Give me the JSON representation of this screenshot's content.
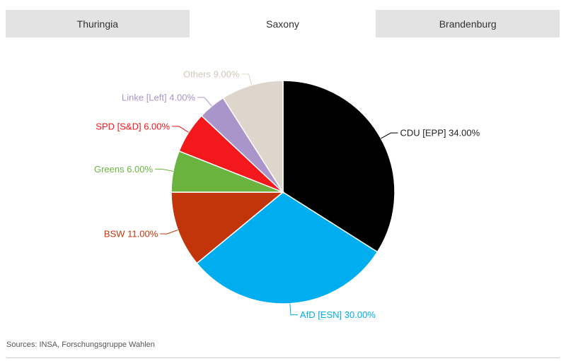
{
  "tabs": [
    {
      "label": "Thuringia",
      "active": false
    },
    {
      "label": "Saxony",
      "active": true
    },
    {
      "label": "Brandenburg",
      "active": false
    }
  ],
  "chart_data": {
    "type": "pie",
    "slices": [
      {
        "name": "CDU [EPP]",
        "value": 34.0,
        "label": "CDU [EPP] 34.00%",
        "color": "#000000"
      },
      {
        "name": "AfD [ESN]",
        "value": 30.0,
        "label": "AfD [ESN] 30.00%",
        "color": "#00adee"
      },
      {
        "name": "BSW",
        "value": 11.0,
        "label": "BSW 11.00%",
        "color": "#c2350b"
      },
      {
        "name": "Greens",
        "value": 6.0,
        "label": "Greens 6.00%",
        "color": "#6bb33f"
      },
      {
        "name": "SPD [S&D]",
        "value": 6.0,
        "label": "SPD [S&D] 6.00%",
        "color": "#f2181c"
      },
      {
        "name": "Linke [Left]",
        "value": 4.0,
        "label": "Linke [Left] 4.00%",
        "color": "#a995c9"
      },
      {
        "name": "Others",
        "value": 9.0,
        "label": "Others 9.00%",
        "color": "#ddd6cc"
      }
    ],
    "start": "12 o'clock",
    "direction": "clockwise"
  },
  "footer": {
    "sources": "Sources: INSA, Forschungsgruppe Wahlen"
  }
}
